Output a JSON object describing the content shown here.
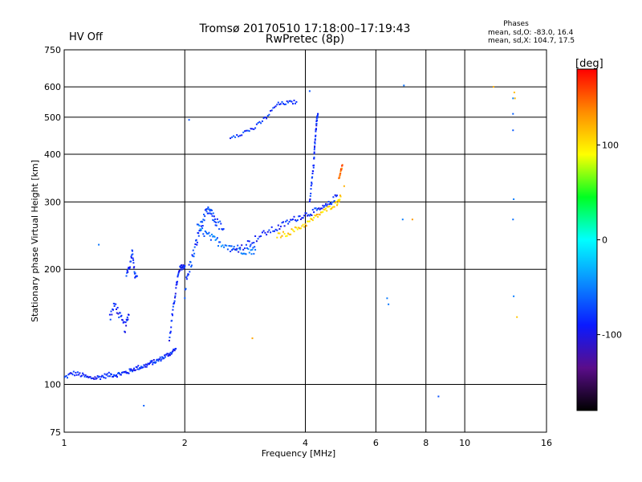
{
  "header": {
    "hv_status": "HV Off",
    "hv_color": "#d00000",
    "title_line1": "Tromsø 20170510 17:18:00–17:19:43",
    "title_line2": "RwPretec (8p)"
  },
  "stats": {
    "heading": "Phases",
    "line_o": "mean, sd,O: -83.0, 16.4",
    "line_x": "mean, sd,X: 104.7, 17.5"
  },
  "chart_data": {
    "type": "scatter",
    "xlabel": "Frequency [MHz]",
    "ylabel": "Stationary phase Virtual Height [km]",
    "x_scale": "log2",
    "y_scale": "log",
    "xlim": [
      1,
      16
    ],
    "ylim": [
      75,
      750
    ],
    "x_ticks": [
      1,
      2,
      4,
      6,
      8,
      10,
      16
    ],
    "x_tick_labels": [
      "1",
      "2",
      "4",
      "6",
      "8",
      "10",
      "16"
    ],
    "y_ticks": [
      75,
      100,
      200,
      300,
      400,
      500,
      600,
      750
    ],
    "y_tick_labels": [
      "75",
      "100",
      "200",
      "300",
      "400",
      "500",
      "600",
      "750"
    ],
    "grid": true,
    "colorbar": {
      "label": "[deg]",
      "range": [
        -180,
        180
      ],
      "ticks": [
        100,
        0,
        -100
      ],
      "tick_labels": [
        "100",
        "0",
        "-100"
      ],
      "colors": [
        "#000000",
        "#5a0d8a",
        "#0a1aff",
        "#0a8cff",
        "#00ffff",
        "#00ff22",
        "#ffff00",
        "#ff8c00",
        "#ff0000"
      ]
    },
    "traces": [
      {
        "name": "o1",
        "phase": -85,
        "x": [
          1.0,
          1.05,
          1.1,
          1.15,
          1.2,
          1.25,
          1.3,
          1.35,
          1.4,
          1.45,
          1.5,
          1.55,
          1.6,
          1.65,
          1.7,
          1.75,
          1.8,
          1.85,
          1.9
        ],
        "y": [
          104,
          107,
          106,
          104,
          104,
          105,
          106,
          106,
          107,
          108,
          110,
          111,
          112,
          114,
          115,
          117,
          119,
          121,
          124
        ],
        "jitter": 1.5
      },
      {
        "name": "o2",
        "phase": -88,
        "x": [
          1.3,
          1.34,
          1.38,
          1.42,
          1.45
        ],
        "y": [
          150,
          162,
          150,
          140,
          152
        ],
        "jitter": 4
      },
      {
        "name": "o3",
        "phase": -80,
        "x": [
          1.43,
          1.46,
          1.48,
          1.5,
          1.52
        ],
        "y": [
          195,
          205,
          225,
          193,
          192
        ],
        "jitter": 3
      },
      {
        "name": "o4",
        "phase": -85,
        "x": [
          1.83,
          1.86,
          1.89,
          1.92,
          1.95,
          1.98,
          2.0
        ],
        "y": [
          130,
          150,
          170,
          190,
          202,
          203,
          204
        ],
        "jitter": 3
      },
      {
        "name": "o5",
        "phase": -75,
        "x": [
          2.0,
          2.05,
          2.1,
          2.15,
          2.2,
          2.25,
          2.3,
          2.35,
          2.4,
          2.5
        ],
        "y": [
          175,
          200,
          218,
          240,
          262,
          278,
          285,
          275,
          265,
          255
        ],
        "jitter": 8
      },
      {
        "name": "o6",
        "phase": -55,
        "x": [
          2.15,
          2.25,
          2.35,
          2.45,
          2.6,
          2.75,
          2.9,
          3.0
        ],
        "y": [
          258,
          248,
          240,
          235,
          230,
          225,
          225,
          225
        ],
        "jitter": 6
      },
      {
        "name": "o7",
        "phase": -85,
        "x": [
          2.6,
          2.8,
          3.0,
          3.2,
          3.4,
          3.6,
          3.8,
          4.0,
          4.2,
          4.4,
          4.6,
          4.8
        ],
        "y": [
          222,
          230,
          240,
          250,
          256,
          265,
          272,
          278,
          283,
          288,
          297,
          312
        ],
        "jitter": 5
      },
      {
        "name": "o8",
        "phase": -85,
        "x": [
          4.1,
          4.15,
          4.2,
          4.22,
          4.25,
          4.27,
          4.3
        ],
        "y": [
          300,
          340,
          380,
          420,
          460,
          490,
          510
        ],
        "jitter": 6
      },
      {
        "name": "o9",
        "phase": -80,
        "x": [
          2.6,
          2.8,
          3.0,
          3.2,
          3.4,
          3.6,
          3.8
        ],
        "y": [
          445,
          455,
          470,
          500,
          540,
          545,
          548
        ],
        "jitter": 6
      },
      {
        "name": "x1",
        "phase": 110,
        "x": [
          3.4,
          3.6,
          3.8,
          4.0,
          4.2,
          4.4,
          4.6,
          4.8,
          4.9
        ],
        "y": [
          245,
          248,
          255,
          262,
          272,
          282,
          290,
          298,
          310
        ],
        "jitter": 4
      },
      {
        "name": "x2",
        "phase": 150,
        "x": [
          4.85,
          4.9,
          4.95
        ],
        "y": [
          345,
          360,
          375
        ],
        "jitter": 3
      },
      {
        "name": "dots",
        "phase": -60,
        "x": [
          1.22,
          1.58,
          2.05,
          4.1,
          6.4,
          6.45,
          7.05,
          8.6,
          13.2,
          13.2,
          13.2,
          13.25,
          13.25,
          13.2,
          7.0
        ],
        "y": [
          232,
          88,
          492,
          585,
          168,
          162,
          605,
          93,
          560,
          510,
          462,
          170,
          305,
          270,
          270
        ],
        "jitter": 0
      },
      {
        "name": "dots_x",
        "phase": 120,
        "x": [
          2.95,
          11.8,
          13.3,
          13.35,
          7.4,
          13.5,
          5.0
        ],
        "y": [
          132,
          600,
          580,
          560,
          270,
          150,
          330
        ],
        "jitter": 0
      }
    ]
  }
}
